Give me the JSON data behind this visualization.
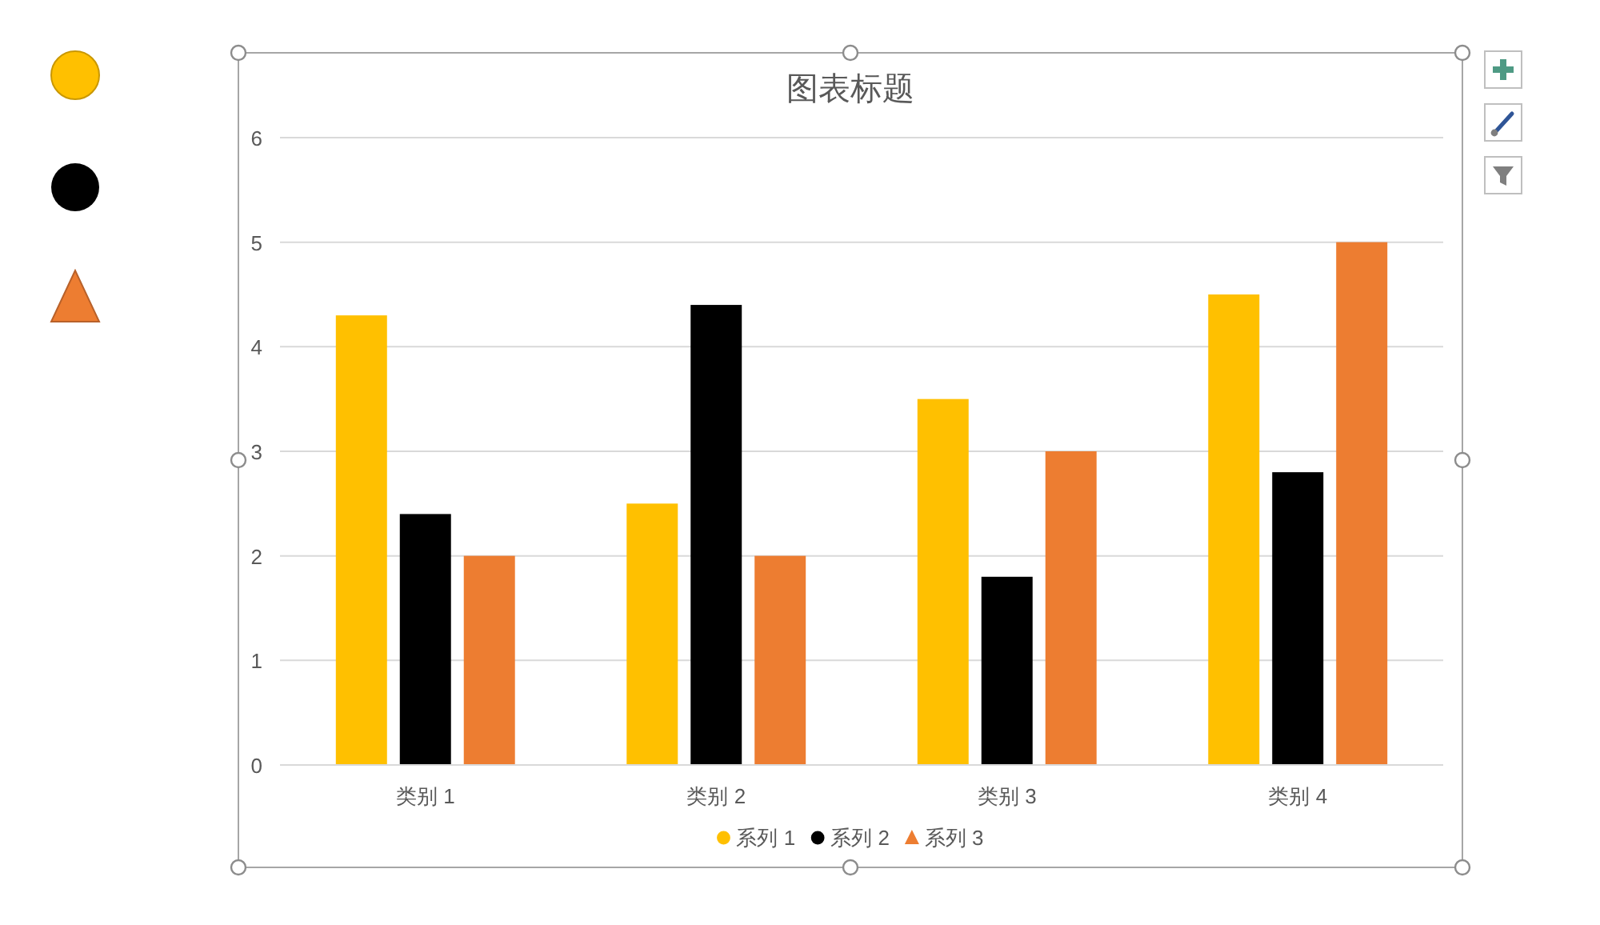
{
  "chart_data": {
    "type": "bar",
    "title": "图表标题",
    "categories": [
      "类别 1",
      "类别 2",
      "类别 3",
      "类别 4"
    ],
    "series": [
      {
        "name": "系列 1",
        "color": "#ffc000",
        "marker": "circle",
        "values": [
          4.3,
          2.5,
          3.5,
          4.5
        ]
      },
      {
        "name": "系列 2",
        "color": "#000000",
        "marker": "circle",
        "values": [
          2.4,
          4.4,
          1.8,
          2.8
        ]
      },
      {
        "name": "系列 3",
        "color": "#ed7d31",
        "marker": "triangle",
        "values": [
          2,
          2,
          3,
          5
        ]
      }
    ],
    "ylim": [
      0,
      6
    ],
    "yticks": [
      0,
      1,
      2,
      3,
      4,
      5,
      6
    ],
    "grid": "y",
    "legend": "bottom"
  }
}
